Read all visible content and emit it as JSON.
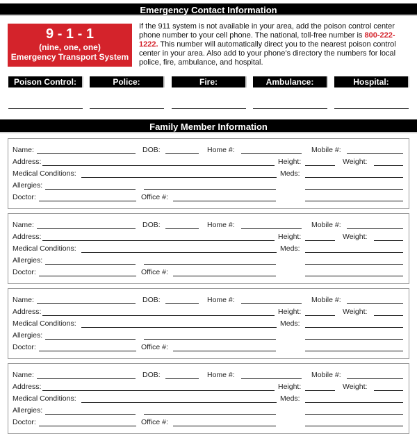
{
  "header": {
    "title": "Emergency Contact Information"
  },
  "emergency_box": {
    "number": "9 - 1 - 1",
    "words": "(nine, one, one)",
    "system": "Emergency Transport System",
    "color": "#d4232b"
  },
  "intro": {
    "before": "If the 911 system is not available in your area, add the poison control center phone number to your cell phone. The national, toll-free number is ",
    "phone": "800-222-1222.",
    "after": " This number will automatically direct you to the nearest poison control center in your area. Also add to your phone’s directory the numbers for local police, fire, ambulance, and hospital."
  },
  "contacts": [
    "Poison Control:",
    "Police:",
    "Fire:",
    "Ambulance:",
    "Hospital:"
  ],
  "family": {
    "title": "Family Member Information",
    "labels": {
      "name": "Name:",
      "dob": "DOB:",
      "home": "Home #:",
      "mobile": "Mobile #:",
      "address": "Address:",
      "height": "Height:",
      "weight": "Weight:",
      "medical": "Medical Conditions:",
      "meds": "Meds:",
      "allergies": "Allergies:",
      "doctor": "Doctor:",
      "office": "Office #:"
    },
    "member_count": 4
  }
}
